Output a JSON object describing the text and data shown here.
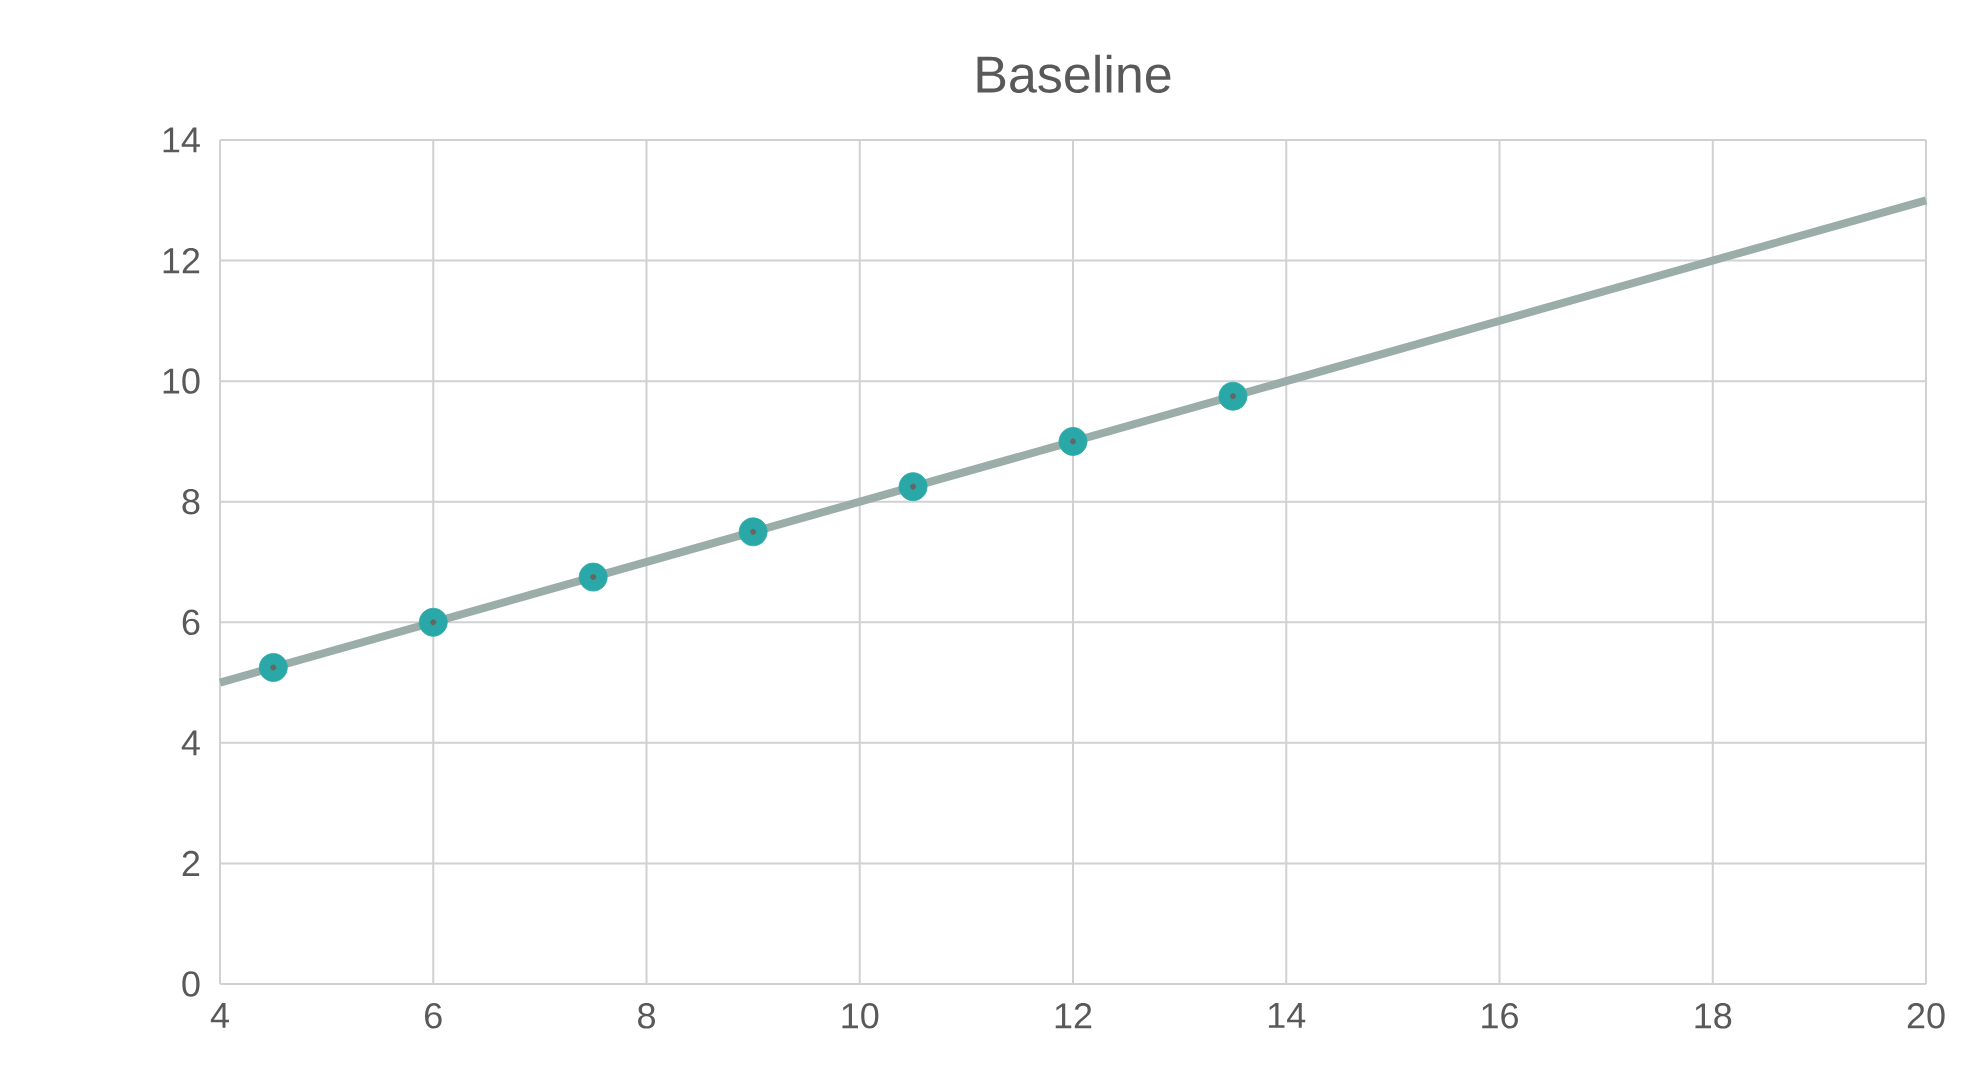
{
  "chart_data": {
    "type": "scatter",
    "title": "Baseline",
    "xlim": [
      4,
      20
    ],
    "ylim": [
      0,
      14
    ],
    "xticks": [
      4,
      6,
      8,
      10,
      12,
      14,
      16,
      18,
      20
    ],
    "yticks": [
      0,
      2,
      4,
      6,
      8,
      10,
      12,
      14
    ],
    "grid": true,
    "series": [
      {
        "color": "#2aa8a8",
        "marker": "circle",
        "x": [
          4.5,
          6,
          7.5,
          9,
          10.5,
          12,
          13.5
        ],
        "values": [
          5.25,
          6,
          6.75,
          7.5,
          8.25,
          9,
          9.75
        ]
      },
      {
        "type": "line",
        "color": "#9aada8",
        "marker": "none",
        "line_style": "solid",
        "x": [
          4,
          20
        ],
        "values": [
          5,
          13
        ]
      }
    ]
  }
}
